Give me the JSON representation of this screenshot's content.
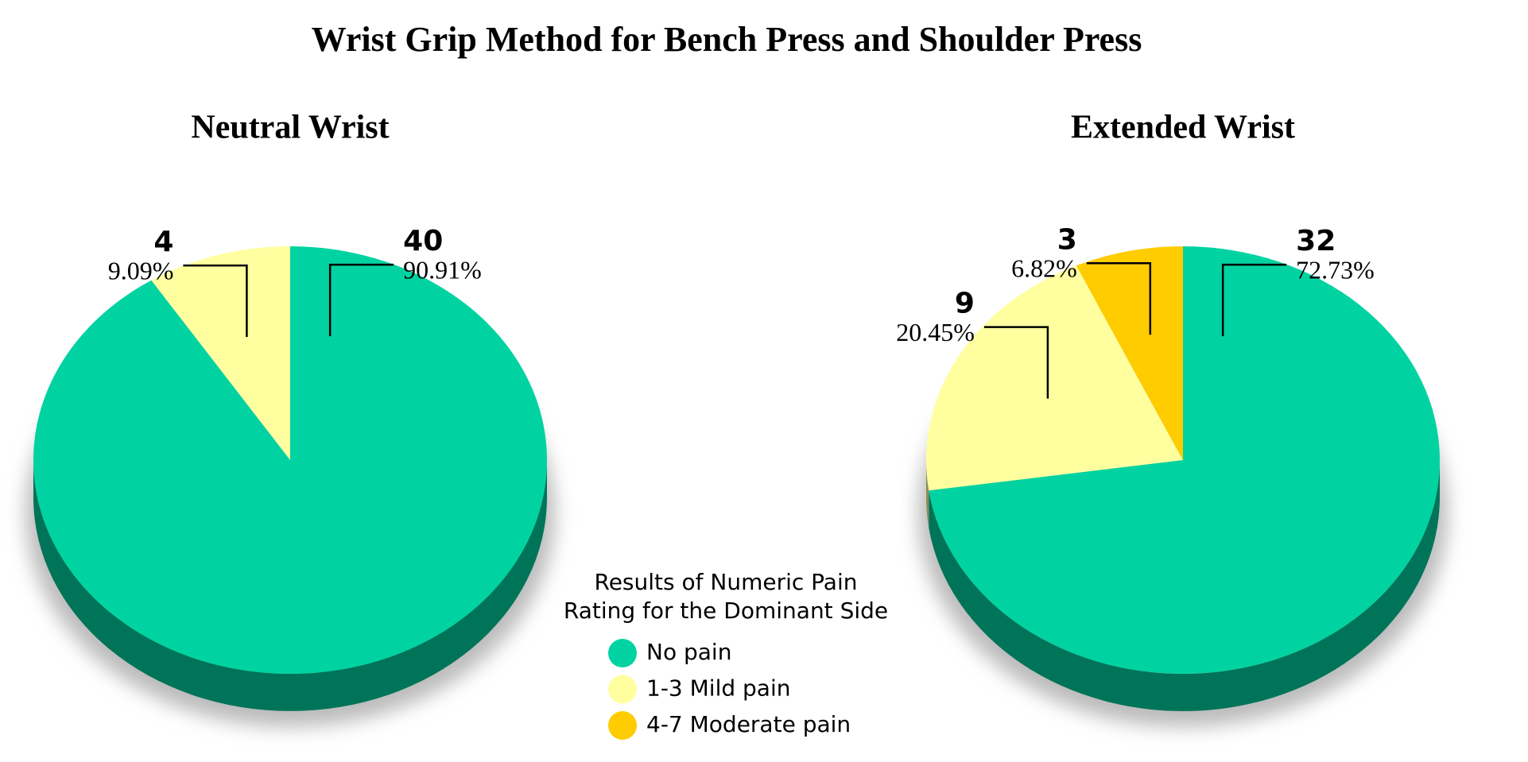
{
  "title": "Wrist Grip Method for Bench Press and Shoulder Press",
  "legend": {
    "title": [
      "Results of Numeric Pain",
      "Rating for the Dominant Side"
    ],
    "items": [
      {
        "name": "No pain",
        "color": "#00d3a1"
      },
      {
        "name": "1-3 Mild pain",
        "color": "#ffffa0"
      },
      {
        "name": "4-7 Moderate pain",
        "color": "#ffcc00"
      }
    ]
  },
  "chart_data": [
    {
      "type": "pie",
      "title": "Neutral Wrist",
      "values": [
        40,
        4
      ],
      "percent_labels": [
        "90.91%",
        "9.09%"
      ]
    },
    {
      "type": "pie",
      "title": "Extended Wrist",
      "values": [
        32,
        9,
        3
      ],
      "percent_labels": [
        "72.73%",
        "20.45%",
        "6.82%"
      ]
    }
  ]
}
